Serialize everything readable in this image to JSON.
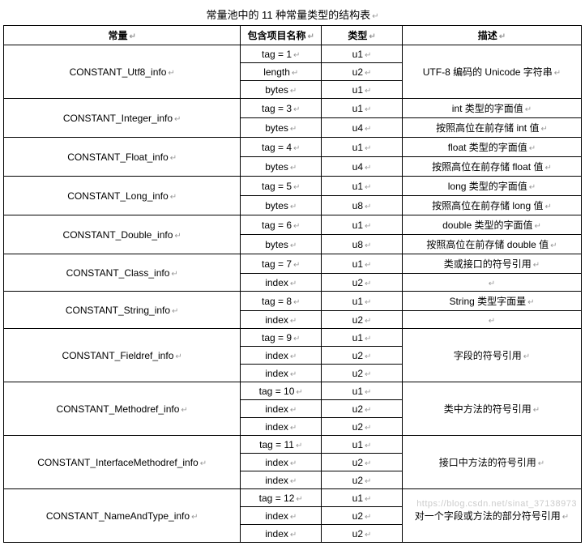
{
  "title": "常量池中的 11 种常量类型的结构表",
  "headers": {
    "constant": "常量",
    "item": "包含项目名称",
    "type": "类型",
    "desc": "描述"
  },
  "groups": [
    {
      "name": "CONSTANT_Utf8_info",
      "desc": "UTF-8 编码的 Unicode 字符串",
      "desc_rowspan": 3,
      "rows": [
        {
          "item": "tag = 1",
          "type": "u1"
        },
        {
          "item": "length",
          "type": "u2"
        },
        {
          "item": "bytes",
          "type": "u1"
        }
      ]
    },
    {
      "name": "CONSTANT_Integer_info",
      "rows": [
        {
          "item": "tag = 3",
          "type": "u1",
          "desc": "int 类型的字面值"
        },
        {
          "item": "bytes",
          "type": "u4",
          "desc": "按照高位在前存储 int 值"
        }
      ]
    },
    {
      "name": "CONSTANT_Float_info",
      "rows": [
        {
          "item": "tag = 4",
          "type": "u1",
          "desc": "float 类型的字面值"
        },
        {
          "item": "bytes",
          "type": "u4",
          "desc": "按照高位在前存储 float 值"
        }
      ]
    },
    {
      "name": "CONSTANT_Long_info",
      "rows": [
        {
          "item": "tag = 5",
          "type": "u1",
          "desc": "long 类型的字面值"
        },
        {
          "item": "bytes",
          "type": "u8",
          "desc": "按照高位在前存储 long 值"
        }
      ]
    },
    {
      "name": "CONSTANT_Double_info",
      "rows": [
        {
          "item": "tag = 6",
          "type": "u1",
          "desc": "double 类型的字面值"
        },
        {
          "item": "bytes",
          "type": "u8",
          "desc": "按照高位在前存储 double 值"
        }
      ]
    },
    {
      "name": "CONSTANT_Class_info",
      "rows": [
        {
          "item": "tag = 7",
          "type": "u1",
          "desc": "类或接口的符号引用"
        },
        {
          "item": "index",
          "type": "u2",
          "desc": ""
        }
      ]
    },
    {
      "name": "CONSTANT_String_info",
      "rows": [
        {
          "item": "tag = 8",
          "type": "u1",
          "desc": "String 类型字面量"
        },
        {
          "item": "index",
          "type": "u2",
          "desc": ""
        }
      ]
    },
    {
      "name": "CONSTANT_Fieldref_info",
      "desc": "字段的符号引用",
      "desc_rowspan": 3,
      "rows": [
        {
          "item": "tag = 9",
          "type": "u1"
        },
        {
          "item": "index",
          "type": "u2"
        },
        {
          "item": "index",
          "type": "u2"
        }
      ]
    },
    {
      "name": "CONSTANT_Methodref_info",
      "desc": "类中方法的符号引用",
      "desc_rowspan": 3,
      "rows": [
        {
          "item": "tag = 10",
          "type": "u1"
        },
        {
          "item": "index",
          "type": "u2"
        },
        {
          "item": "index",
          "type": "u2"
        }
      ]
    },
    {
      "name": "CONSTANT_InterfaceMethodref_info",
      "desc": "接口中方法的符号引用",
      "desc_rowspan": 3,
      "rows": [
        {
          "item": "tag = 11",
          "type": "u1"
        },
        {
          "item": "index",
          "type": "u2"
        },
        {
          "item": "index",
          "type": "u2"
        }
      ]
    },
    {
      "name": "CONSTANT_NameAndType_info",
      "desc": "对一个字段或方法的部分符号引用",
      "desc_rowspan": 3,
      "rows": [
        {
          "item": "tag = 12",
          "type": "u1"
        },
        {
          "item": "index",
          "type": "u2"
        },
        {
          "item": "index",
          "type": "u2"
        }
      ]
    }
  ],
  "watermark": "https://blog.csdn.net/sinat_37138973",
  "style": {
    "border_color": "#000000",
    "background_color": "#ffffff",
    "text_color": "#000000",
    "placeholder_color": "#999999",
    "font_size": 12,
    "col_widths": {
      "constant": "41%",
      "item": "14%",
      "type": "14%",
      "desc": "31%"
    }
  }
}
